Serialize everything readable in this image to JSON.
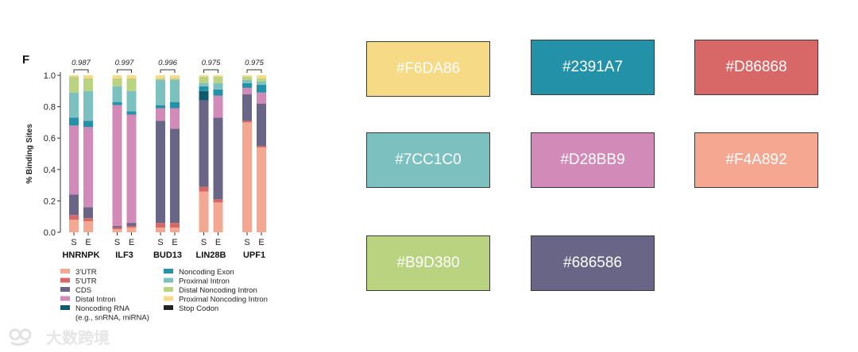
{
  "chart_data": {
    "type": "bar",
    "stacked": true,
    "panel_label": "F",
    "ylabel": "% Binding Sites",
    "ylim": [
      0,
      1.0
    ],
    "yticks": [
      "0.0",
      "0.2",
      "0.4",
      "0.6",
      "0.8",
      "1.0"
    ],
    "groups": [
      {
        "name": "HNRNPK",
        "correlation": "0.987"
      },
      {
        "name": "ILF3",
        "correlation": "0.997"
      },
      {
        "name": "BUD13",
        "correlation": "0.996"
      },
      {
        "name": "LIN28B",
        "correlation": "0.975"
      },
      {
        "name": "UPF1",
        "correlation": "0.975"
      }
    ],
    "bar_labels": [
      "S",
      "E"
    ],
    "categories": [
      "HNRNPK S",
      "HNRNPK E",
      "ILF3 S",
      "ILF3 E",
      "BUD13 S",
      "BUD13 E",
      "LIN28B S",
      "LIN28B E",
      "UPF1 S",
      "UPF1 E"
    ],
    "series": [
      {
        "name": "3'UTR",
        "color": "#F4A892",
        "values": [
          0.08,
          0.07,
          0.02,
          0.03,
          0.03,
          0.03,
          0.26,
          0.19,
          0.7,
          0.54
        ]
      },
      {
        "name": "5'UTR",
        "color": "#D86868",
        "values": [
          0.03,
          0.02,
          0.01,
          0.01,
          0.03,
          0.03,
          0.03,
          0.02,
          0.01,
          0.01
        ]
      },
      {
        "name": "CDS",
        "color": "#686586",
        "values": [
          0.13,
          0.07,
          0.01,
          0.02,
          0.65,
          0.6,
          0.55,
          0.52,
          0.17,
          0.27
        ]
      },
      {
        "name": "Distal Intron",
        "color": "#D28BB9",
        "values": [
          0.44,
          0.51,
          0.77,
          0.69,
          0.08,
          0.13,
          0.0,
          0.14,
          0.04,
          0.07
        ]
      },
      {
        "name": "Noncoding RNA (e.g., snRNA, miRNA)",
        "color": "#0E5A6E",
        "values": [
          0.0,
          0.0,
          0.0,
          0.0,
          0.0,
          0.0,
          0.06,
          0.0,
          0.0,
          0.0
        ]
      },
      {
        "name": "Noncoding Exon",
        "color": "#2391A7",
        "values": [
          0.05,
          0.04,
          0.02,
          0.02,
          0.02,
          0.04,
          0.03,
          0.04,
          0.03,
          0.05
        ]
      },
      {
        "name": "Proximal Intron",
        "color": "#7CC1C0",
        "values": [
          0.16,
          0.19,
          0.1,
          0.13,
          0.16,
          0.14,
          0.02,
          0.04,
          0.02,
          0.02
        ]
      },
      {
        "name": "Distal Noncoding Intron",
        "color": "#B9D380",
        "values": [
          0.1,
          0.08,
          0.05,
          0.08,
          0.01,
          0.01,
          0.04,
          0.04,
          0.02,
          0.02
        ]
      },
      {
        "name": "Proximal Noncoding Intron",
        "color": "#F6DA86",
        "values": [
          0.01,
          0.02,
          0.02,
          0.02,
          0.02,
          0.02,
          0.01,
          0.01,
          0.01,
          0.02
        ]
      },
      {
        "name": "Stop Codon",
        "color": "#222222",
        "values": [
          0.0,
          0.0,
          0.0,
          0.0,
          0.0,
          0.0,
          0.0,
          0.0,
          0.0,
          0.0
        ]
      }
    ],
    "legend": [
      {
        "label": "3'UTR",
        "color": "#F4A892",
        "column": 0
      },
      {
        "label": "5'UTR",
        "color": "#D86868",
        "column": 0
      },
      {
        "label": "CDS",
        "color": "#686586",
        "column": 0
      },
      {
        "label": "Distal Intron",
        "color": "#D28BB9",
        "column": 0
      },
      {
        "label": "Noncoding RNA",
        "sublabel": "(e.g., snRNA, miRNA)",
        "color": "#0E5A6E",
        "column": 0
      },
      {
        "label": "Noncoding Exon",
        "color": "#2391A7",
        "column": 1
      },
      {
        "label": "Proximal Intron",
        "color": "#7CC1C0",
        "column": 1
      },
      {
        "label": "Distal Noncoding Intron",
        "color": "#B9D380",
        "column": 1
      },
      {
        "label": "Proximal Noncoding Intron",
        "color": "#F6DA86",
        "column": 1
      },
      {
        "label": "Stop Codon",
        "color": "#222222",
        "column": 1
      }
    ],
    "legend_placement": "bottom",
    "grid": false
  },
  "palette": [
    {
      "hex": "#F6DA86",
      "color": "#F6DA86"
    },
    {
      "hex": "#2391A7",
      "color": "#2391A7"
    },
    {
      "hex": "#D86868",
      "color": "#D86868"
    },
    {
      "hex": "#7CC1C0",
      "color": "#7CC1C0"
    },
    {
      "hex": "#D28BB9",
      "color": "#D28BB9"
    },
    {
      "hex": "#F4A892",
      "color": "#F4A892"
    },
    {
      "hex": "#B9D380",
      "color": "#B9D380"
    },
    {
      "hex": "#686586",
      "color": "#686586"
    }
  ],
  "watermark": {
    "text": "大数跨境",
    "icon": "logo-icon"
  }
}
